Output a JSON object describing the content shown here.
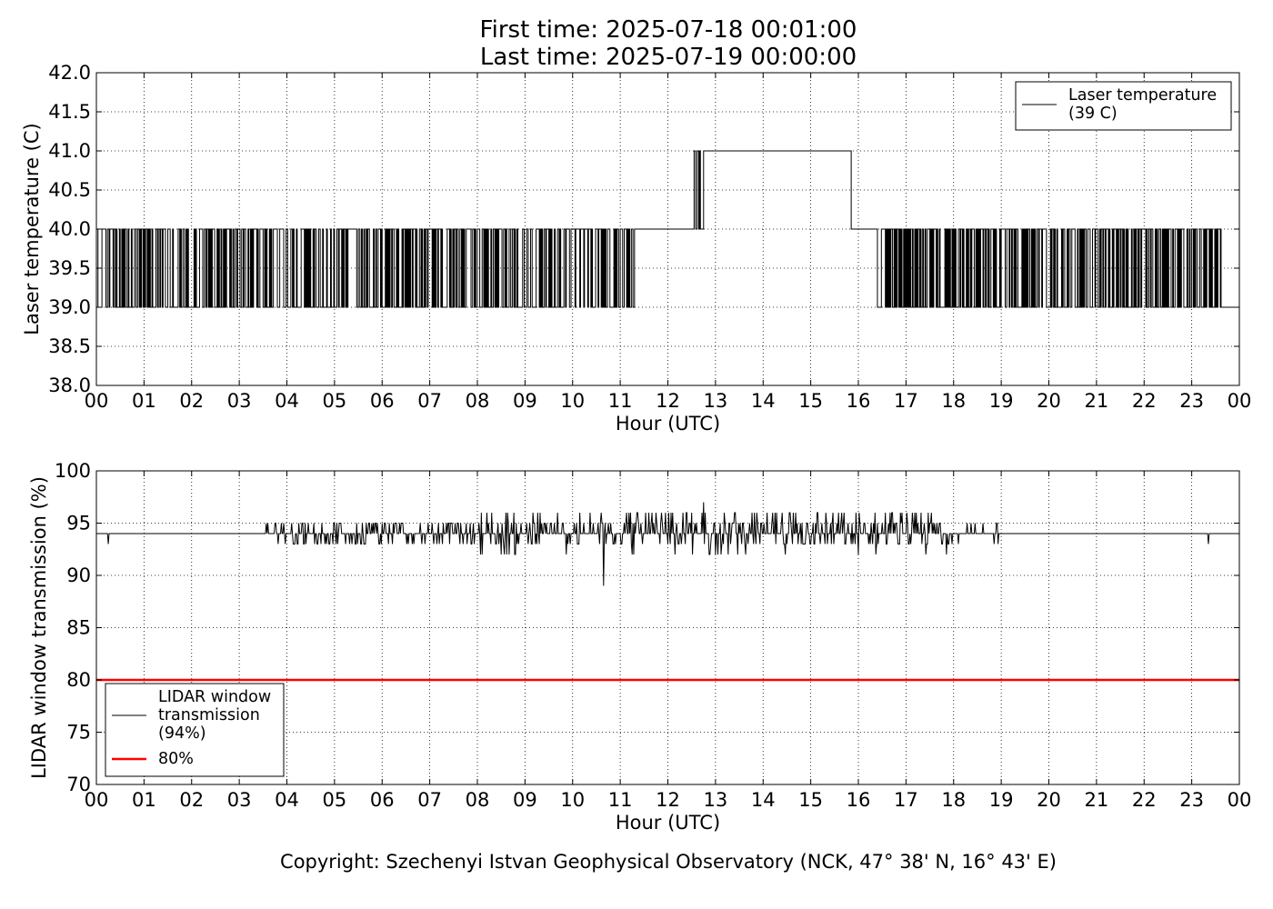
{
  "header": {
    "title_line1": "First time: 2025-07-18 00:01:00",
    "title_line2": "Last time: 2025-07-19 00:00:00"
  },
  "footer": {
    "copyright": "Copyright: Szechenyi Istvan Geophysical Observatory (NCK, 47° 38' N, 16° 43' E)"
  },
  "colors": {
    "series": "#000000",
    "threshold": "#ff0000",
    "grid": "#000000"
  },
  "chart_data": [
    {
      "type": "line",
      "xlabel": "Hour (UTC)",
      "ylabel": "Laser temperature (C)",
      "xlim": [
        0,
        24
      ],
      "ylim": [
        38.0,
        42.0
      ],
      "xticks": [
        "00",
        "01",
        "02",
        "03",
        "04",
        "05",
        "06",
        "07",
        "08",
        "09",
        "10",
        "11",
        "12",
        "13",
        "14",
        "15",
        "16",
        "17",
        "18",
        "19",
        "20",
        "21",
        "22",
        "23",
        "00"
      ],
      "yticks": [
        "38.0",
        "38.5",
        "39.0",
        "39.5",
        "40.0",
        "40.5",
        "41.0",
        "41.5",
        "42.0"
      ],
      "grid": true,
      "legend_position": "top-right",
      "series": [
        {
          "name": "Laser temperature\n(39 C)",
          "kind": "step-toggle",
          "low": 39,
          "high": 40,
          "segments": [
            {
              "from": 0.0,
              "to": 11.3,
              "base": 40,
              "alt": 39,
              "density": 0.55
            },
            {
              "from": 11.3,
              "to": 12.55,
              "base": 40,
              "alt": 40,
              "density": 0
            },
            {
              "from": 12.55,
              "to": 12.75,
              "base": 41,
              "alt": 40,
              "density": 0.6
            },
            {
              "from": 12.75,
              "to": 15.85,
              "base": 41,
              "alt": 41,
              "density": 0
            },
            {
              "from": 15.85,
              "to": 16.4,
              "base": 40,
              "alt": 40,
              "density": 0
            },
            {
              "from": 16.4,
              "to": 23.6,
              "base": 39,
              "alt": 40,
              "density": 0.6
            },
            {
              "from": 23.6,
              "to": 24.0,
              "base": 39,
              "alt": 39,
              "density": 0
            }
          ]
        }
      ]
    },
    {
      "type": "line",
      "xlabel": "Hour (UTC)",
      "ylabel": "LIDAR window transmission (%)",
      "xlim": [
        0,
        24
      ],
      "ylim": [
        70,
        100
      ],
      "xticks": [
        "00",
        "01",
        "02",
        "03",
        "04",
        "05",
        "06",
        "07",
        "08",
        "09",
        "10",
        "11",
        "12",
        "13",
        "14",
        "15",
        "16",
        "17",
        "18",
        "19",
        "20",
        "21",
        "22",
        "23",
        "00"
      ],
      "yticks": [
        "70",
        "75",
        "80",
        "85",
        "90",
        "95",
        "100"
      ],
      "grid": true,
      "legend_position": "lower-left",
      "series": [
        {
          "name": "LIDAR window\ntransmission\n(94%)",
          "kind": "noisy",
          "base": 94,
          "segments": [
            {
              "from": 0.0,
              "to": 3.55,
              "amplitude": 0
            },
            {
              "from": 3.55,
              "to": 8.0,
              "amplitude": 1.3
            },
            {
              "from": 8.0,
              "to": 10.5,
              "amplitude": 2.0
            },
            {
              "from": 10.5,
              "to": 17.9,
              "amplitude": 2.0
            },
            {
              "from": 17.9,
              "to": 19.0,
              "amplitude": 0.6
            },
            {
              "from": 19.0,
              "to": 24.0,
              "amplitude": 0
            }
          ],
          "dips": [
            {
              "x": 0.25,
              "y": 93
            },
            {
              "x": 10.65,
              "y": 89
            },
            {
              "x": 12.75,
              "y": 97
            },
            {
              "x": 23.35,
              "y": 93
            }
          ]
        },
        {
          "name": "80%",
          "kind": "constant",
          "value": 80
        }
      ]
    }
  ]
}
